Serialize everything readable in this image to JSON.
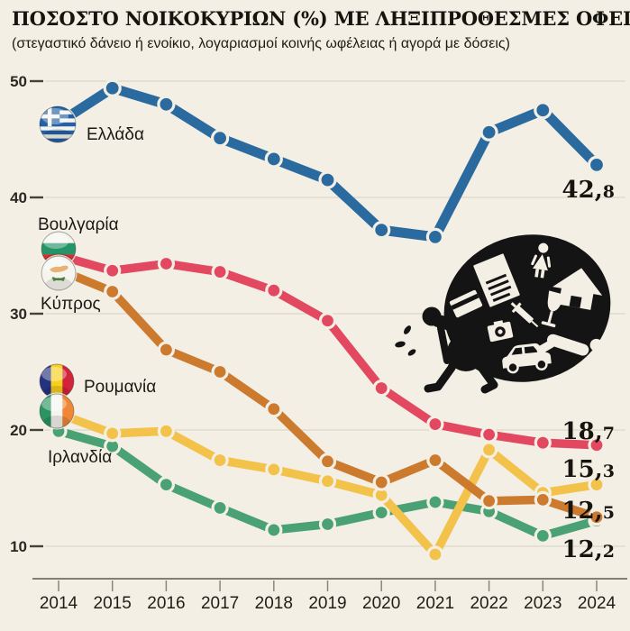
{
  "title": "ΠΟΣΟΣΤΟ ΝΟΙΚΟΚΥΡΙΩΝ (%) ΜΕ ΛΗΞΙΠΡΟΘΕΣΜΕΣ ΟΦΕΙΛΕΣ",
  "subtitle": "(στεγαστικό δάνειο ή ενοίκιο, λογαριασμοί κοινής ωφέλειας ή αγορά με δόσεις)",
  "colors": {
    "background": "#f3efe4",
    "grid": "#dcd8ca",
    "axis": "#5d5950",
    "tick": "#45423a",
    "text": "#16140f",
    "illustration": "#141414",
    "marker_ring": "#f3efe4"
  },
  "chart_data": {
    "type": "line",
    "x": [
      2014,
      2015,
      2016,
      2017,
      2018,
      2019,
      2020,
      2021,
      2022,
      2023,
      2024
    ],
    "yticks": [
      10,
      20,
      30,
      40,
      50
    ],
    "ylim": [
      7,
      52
    ],
    "grid": "horizontal-only",
    "legend_position": "on-lines-left",
    "series": [
      {
        "key": "greece",
        "name": "Ελλάδα",
        "flag_icon": "flag-greece-icon",
        "color": "#2b6a9e",
        "values": [
          46.4,
          49.4,
          48.0,
          45.1,
          43.3,
          41.5,
          37.2,
          36.6,
          45.6,
          47.5,
          42.8
        ],
        "end_label": "42,8"
      },
      {
        "key": "bulgaria",
        "name": "Βουλγαρία",
        "flag_icon": "flag-bulgaria-icon",
        "color": "#e2485f",
        "values": [
          35.0,
          33.7,
          34.3,
          33.6,
          32.0,
          29.4,
          23.6,
          20.5,
          19.6,
          18.9,
          18.7
        ],
        "end_label": "18,7"
      },
      {
        "key": "cyprus",
        "name": "Κύπρος",
        "flag_icon": "flag-cyprus-icon",
        "color": "#cc7a2e",
        "values": [
          33.8,
          31.9,
          26.9,
          25.0,
          21.8,
          17.3,
          15.5,
          17.4,
          13.9,
          14.0,
          12.5
        ],
        "end_label": "12,5"
      },
      {
        "key": "romania",
        "name": "Ρουμανία",
        "flag_icon": "flag-romania-icon",
        "color": "#f3c24b",
        "values": [
          21.4,
          19.7,
          19.9,
          17.4,
          16.6,
          15.6,
          14.4,
          9.3,
          18.3,
          14.6,
          15.3
        ],
        "end_label": "15,3"
      },
      {
        "key": "ireland",
        "name": "Ιρλανδία",
        "flag_icon": "flag-ireland-icon",
        "color": "#4aa173",
        "values": [
          19.9,
          18.6,
          15.3,
          13.3,
          11.4,
          11.9,
          12.9,
          13.8,
          13.0,
          10.9,
          12.2
        ],
        "end_label": "12,2"
      }
    ]
  },
  "illustration": {
    "description": "person bent over carrying a huge black sack filled with white pictograms of debts and expenses",
    "icons": [
      "burdened-person-icon",
      "sweat-drops-icon",
      "debt-sack-icon",
      "document-bill-icon",
      "credit-card-icon",
      "woman-icon",
      "house-icon",
      "wine-glass-icon",
      "syringe-icon",
      "camera-icon",
      "car-icon",
      "lying-person-icon"
    ]
  }
}
